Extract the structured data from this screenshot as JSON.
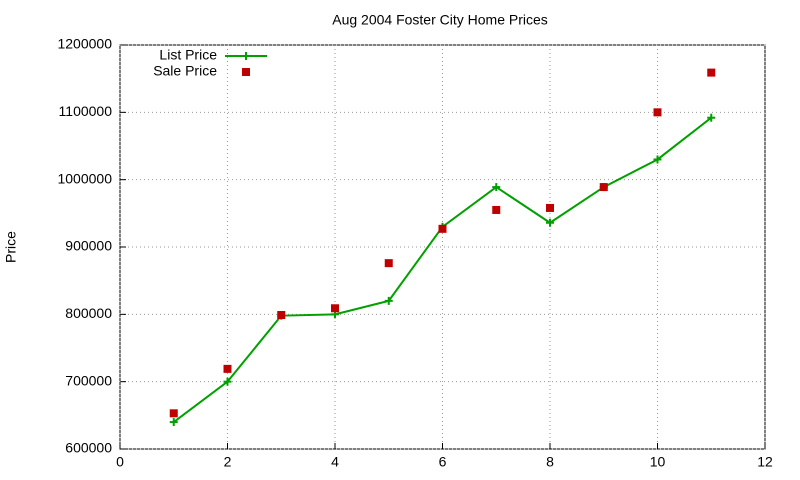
{
  "chart_data": {
    "type": "line",
    "title": "Aug 2004 Foster City Home Prices",
    "y_label": "Price",
    "x": [
      1,
      2,
      3,
      4,
      5,
      6,
      7,
      8,
      9,
      10,
      11
    ],
    "series": [
      {
        "name": "List Price",
        "color": "#00a000",
        "style": "linespoints",
        "values": [
          640000,
          700000,
          798000,
          800000,
          820000,
          930000,
          989000,
          936000,
          989000,
          1030000,
          1092000
        ]
      },
      {
        "name": "Sale Price",
        "color": "#c00000",
        "style": "points",
        "values": [
          653000,
          719000,
          799000,
          809000,
          876000,
          927000,
          955000,
          958000,
          989000,
          1100000,
          1159000
        ]
      }
    ],
    "xlim": [
      0,
      12
    ],
    "xticks": [
      0,
      2,
      4,
      6,
      8,
      10,
      12
    ],
    "ylim": [
      600000,
      1200000
    ],
    "yticks": [
      600000,
      700000,
      800000,
      900000,
      1000000,
      1100000,
      1200000
    ],
    "grid": true,
    "legend": "top-left"
  }
}
